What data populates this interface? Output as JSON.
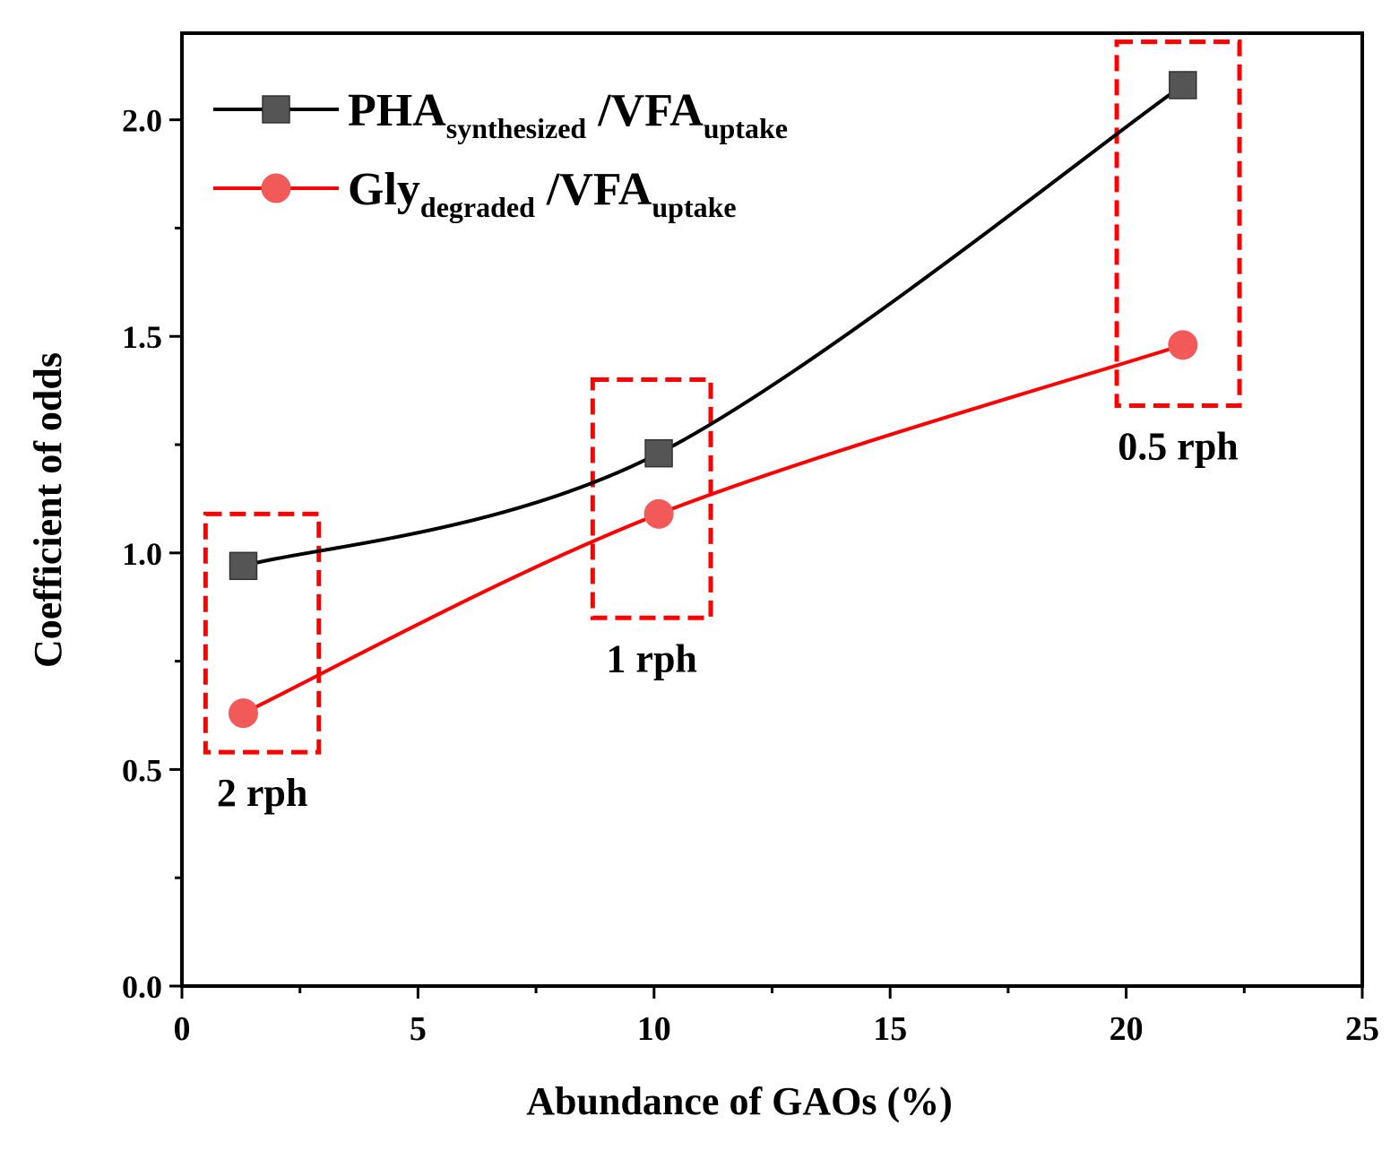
{
  "chart_data": {
    "type": "line",
    "title": "",
    "xlabel": "Abundance of GAOs (%)",
    "ylabel": "Coefficient of odds",
    "xlim": [
      0,
      25
    ],
    "ylim": [
      0,
      2.2
    ],
    "x_ticks": [
      0,
      5,
      10,
      15,
      20,
      25
    ],
    "y_ticks": [
      0.0,
      0.5,
      1.0,
      1.5,
      2.0
    ],
    "x_tick_labels": [
      "0",
      "5",
      "10",
      "15",
      "20",
      "25"
    ],
    "y_tick_labels": [
      "0.0",
      "0.5",
      "1.0",
      "1.5",
      "2.0"
    ],
    "grid": false,
    "legend_position": "top-left",
    "series": [
      {
        "name": "PHA synthesized / VFA uptake",
        "legend_main": "PHA",
        "legend_sub": "synthesized",
        "legend_mid": " /VFA",
        "legend_sub2": "uptake",
        "marker": "square",
        "color": "#000000",
        "marker_color": "#555555",
        "x": [
          1.3,
          10.1,
          21.2
        ],
        "y": [
          0.97,
          1.23,
          2.08
        ]
      },
      {
        "name": "Gly degraded / VFA uptake",
        "legend_main": "Gly",
        "legend_sub": "degraded",
        "legend_mid": " /VFA",
        "legend_sub2": "uptake",
        "marker": "circle",
        "color": "#ff0000",
        "marker_color": "#f25a5a",
        "x": [
          1.3,
          10.1,
          21.2
        ],
        "y": [
          0.63,
          1.09,
          1.48
        ]
      }
    ],
    "annotations": [
      {
        "label": "2 rph",
        "x_range": [
          0.5,
          2.9
        ],
        "y_range": [
          0.54,
          1.09
        ],
        "label_side": "below"
      },
      {
        "label": "1 rph",
        "x_range": [
          8.7,
          11.2
        ],
        "y_range": [
          0.85,
          1.4
        ],
        "label_side": "below"
      },
      {
        "label": "0.5 rph",
        "x_range": [
          19.8,
          22.4
        ],
        "y_range": [
          1.34,
          2.18
        ],
        "label_side": "below"
      }
    ],
    "annotation_color": "#ff0000"
  }
}
